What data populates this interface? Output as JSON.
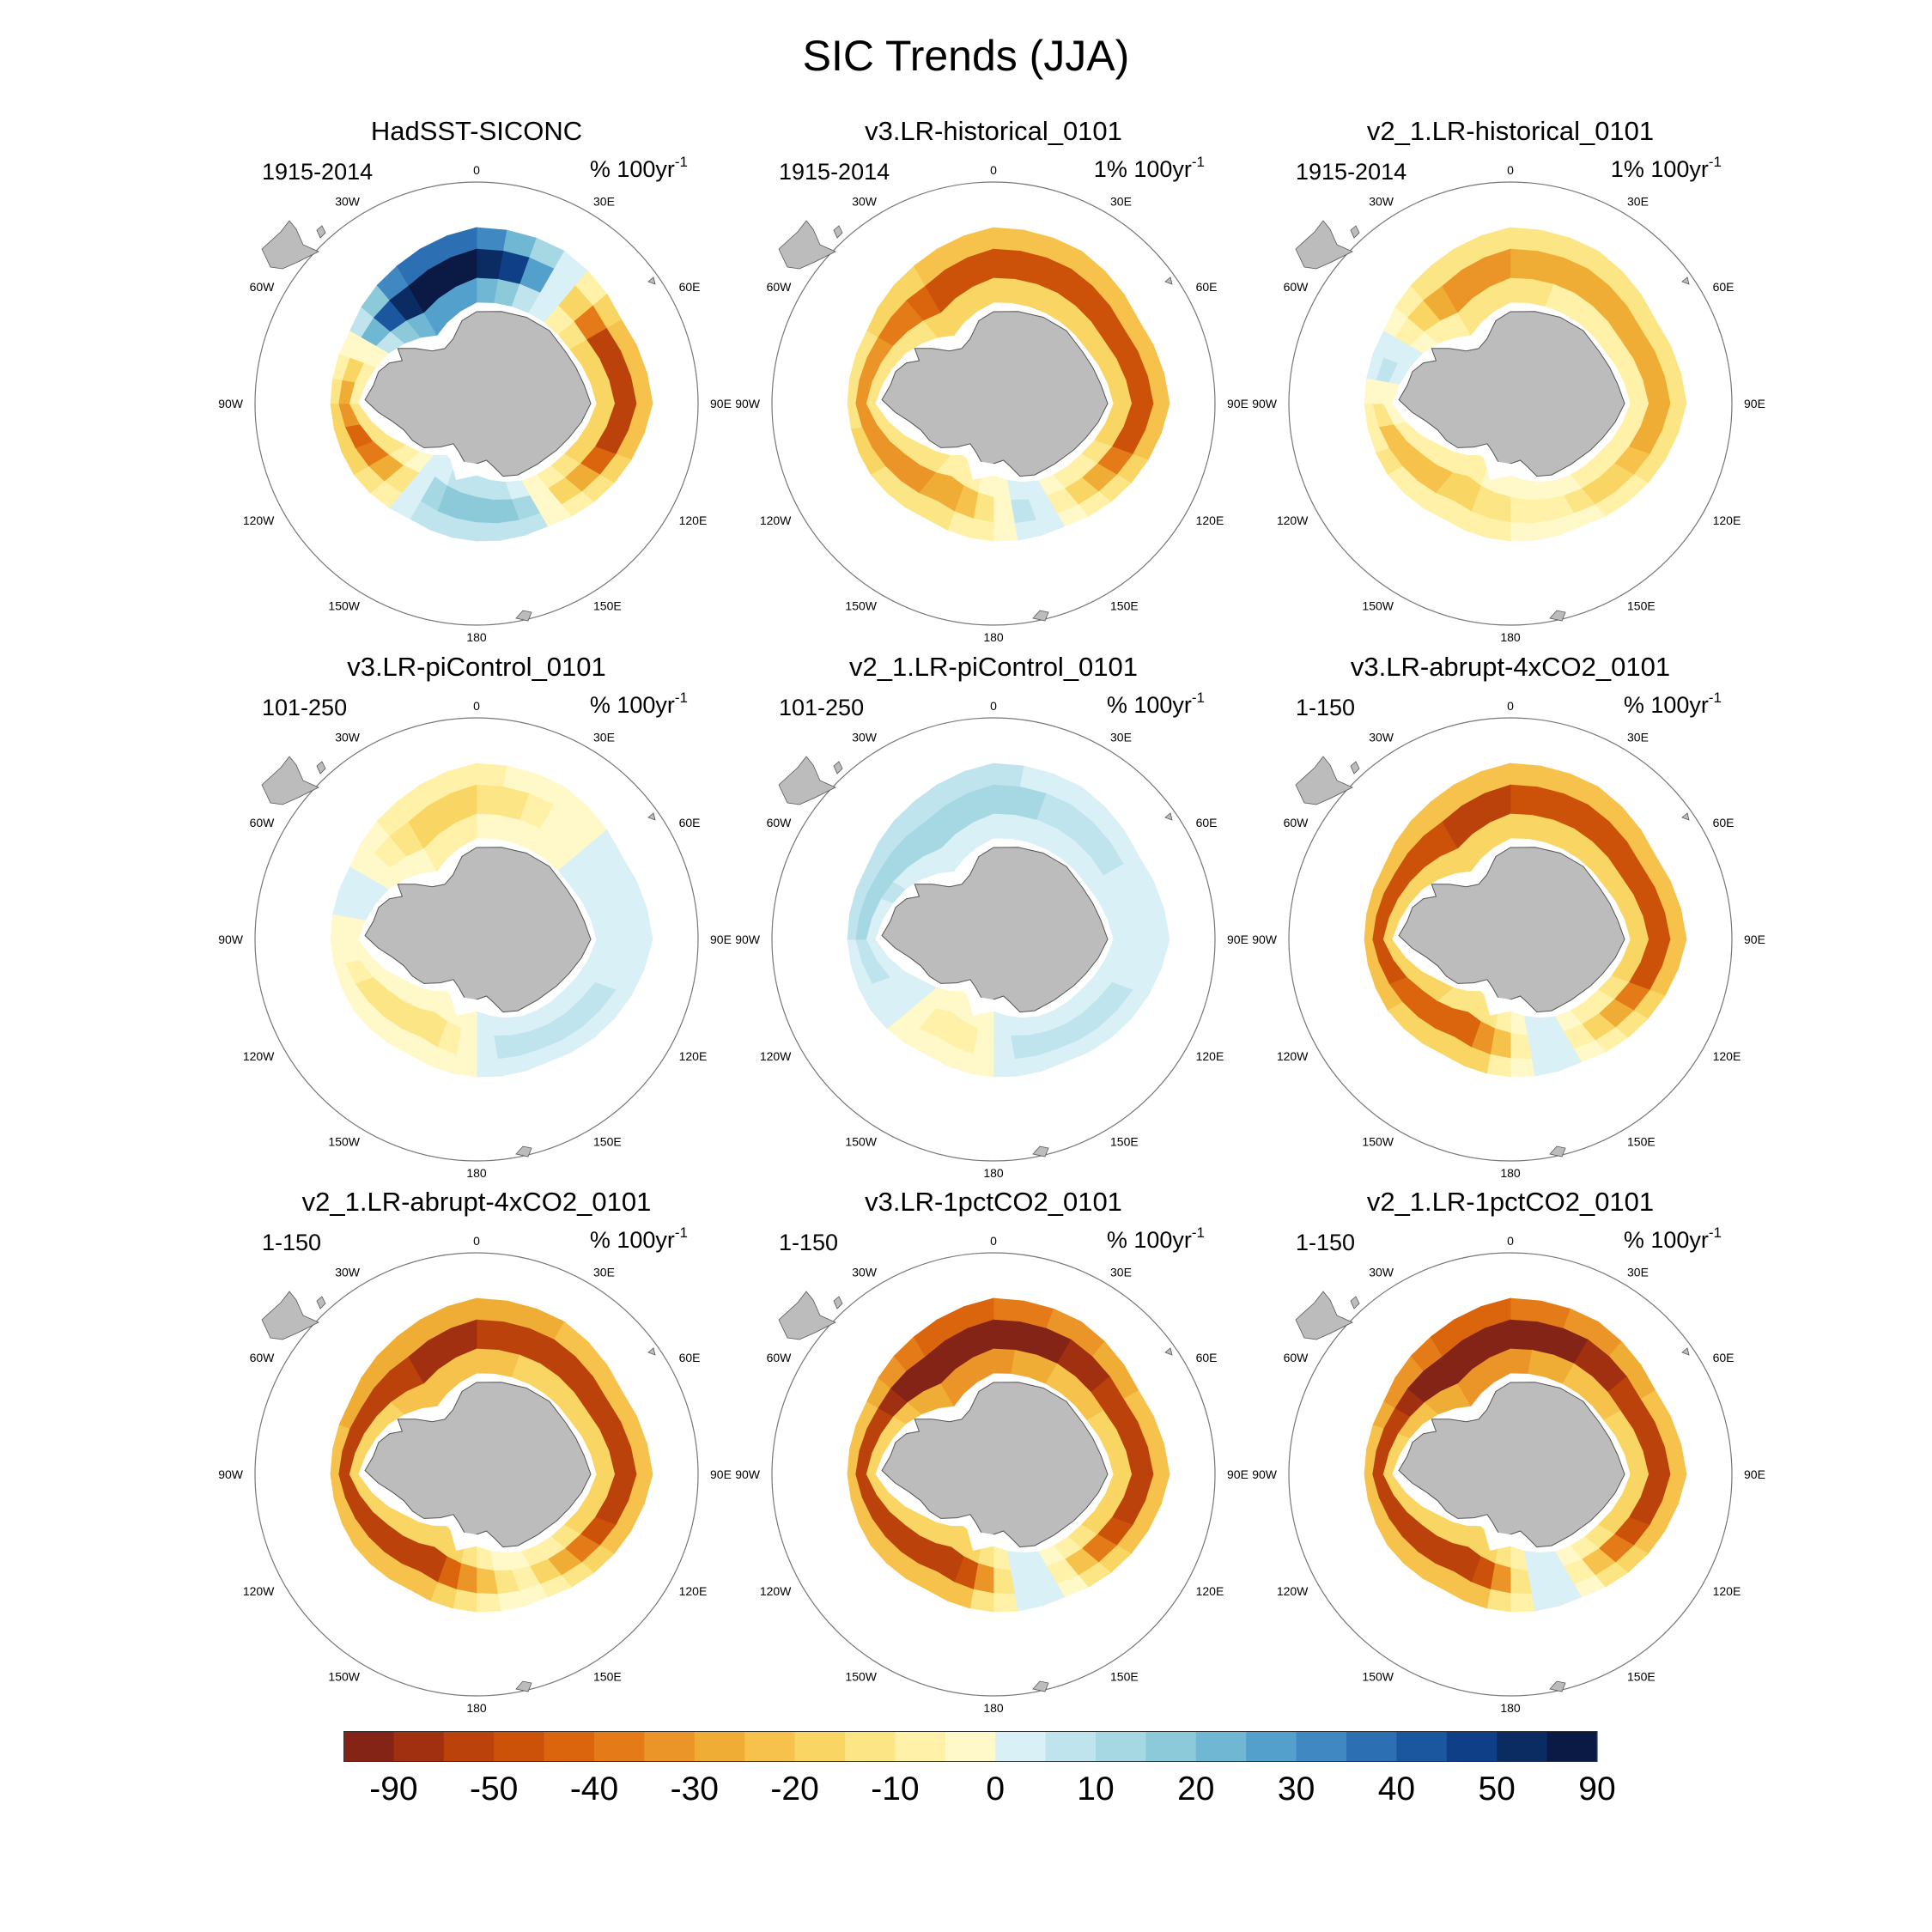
{
  "title": "SIC Trends (JJA)",
  "longitude_labels": [
    "0",
    "30E",
    "60E",
    "90E",
    "120E",
    "150E",
    "180",
    "150W",
    "120W",
    "90W",
    "60W",
    "30W"
  ],
  "panels": [
    {
      "title": "HadSST-SICONC",
      "period": "1915-2014",
      "units_prefix": "% 100yr",
      "units_exp": "-1",
      "ring": {
        "west": -45,
        "east": -50,
        "south": 20,
        "pen": -15,
        "ross": 20,
        "peak": 80
      }
    },
    {
      "title": "v3.LR-historical_0101",
      "period": "1915-2014",
      "units_prefix": "1% 100yr",
      "units_exp": "-1",
      "ring": {
        "west": -35,
        "east": -45,
        "south": -25,
        "pen": -30,
        "ross": 10,
        "peak": -45
      }
    },
    {
      "title": "v2_1.LR-historical_0101",
      "period": "1915-2014",
      "units_prefix": "1% 100yr",
      "units_exp": "-1",
      "ring": {
        "west": -25,
        "east": -25,
        "south": -15,
        "pen": 10,
        "ross": -5,
        "peak": -30
      }
    },
    {
      "title": "v3.LR-piControl_0101",
      "period": "101-250",
      "units_prefix": "% 100yr",
      "units_exp": "-1",
      "ring": {
        "west": -10,
        "east": 5,
        "south": -10,
        "pen": 5,
        "ross": 8,
        "peak": -15
      }
    },
    {
      "title": "v2_1.LR-piControl_0101",
      "period": "101-250",
      "units_prefix": "% 100yr",
      "units_exp": "-1",
      "ring": {
        "west": 5,
        "east": 5,
        "south": -10,
        "pen": 15,
        "ross": 10,
        "peak": 12
      }
    },
    {
      "title": "v3.LR-abrupt-4xCO2_0101",
      "period": "1-150",
      "units_prefix": "% 100yr",
      "units_exp": "-1",
      "ring": {
        "west": -45,
        "east": -45,
        "south": -40,
        "pen": -45,
        "ross": 10,
        "peak": -50
      }
    },
    {
      "title": "v2_1.LR-abrupt-4xCO2_0101",
      "period": "1-150",
      "units_prefix": "% 100yr",
      "units_exp": "-1",
      "ring": {
        "west": -50,
        "east": -50,
        "south": -50,
        "pen": -55,
        "ross": -5,
        "peak": -60
      }
    },
    {
      "title": "v3.LR-1pctCO2_0101",
      "period": "1-150",
      "units_prefix": "% 100yr",
      "units_exp": "-1",
      "ring": {
        "west": -55,
        "east": -55,
        "south": -55,
        "pen": -50,
        "ross": 10,
        "peak": -90
      }
    },
    {
      "title": "v2_1.LR-1pctCO2_0101",
      "period": "1-150",
      "units_prefix": "% 100yr",
      "units_exp": "-1",
      "ring": {
        "west": -55,
        "east": -55,
        "south": -55,
        "pen": -55,
        "ross": 10,
        "peak": -90
      }
    }
  ],
  "colorbar": {
    "labels": [
      "-90",
      "-50",
      "-40",
      "-30",
      "-20",
      "-10",
      "0",
      "10",
      "20",
      "30",
      "40",
      "50",
      "90"
    ],
    "colors": [
      "#842416",
      "#a0300f",
      "#bb420b",
      "#cc520a",
      "#da650d",
      "#e47b18",
      "#eb9528",
      "#f0ad35",
      "#f6c24b",
      "#f9d564",
      "#fce584",
      "#fff1a8",
      "#fff8c8",
      "#d8f0f6",
      "#bfe4ee",
      "#a6d8e3",
      "#8ccad9",
      "#6fb7d3",
      "#54a0cc",
      "#3f88c2",
      "#2c6fb2",
      "#1b579f",
      "#0f3f86",
      "#0b2b63",
      "#0a1a45"
    ]
  },
  "colors": {
    "land": "#bcbcbc",
    "coast": "#555555",
    "grid_circle": "#777777"
  }
}
